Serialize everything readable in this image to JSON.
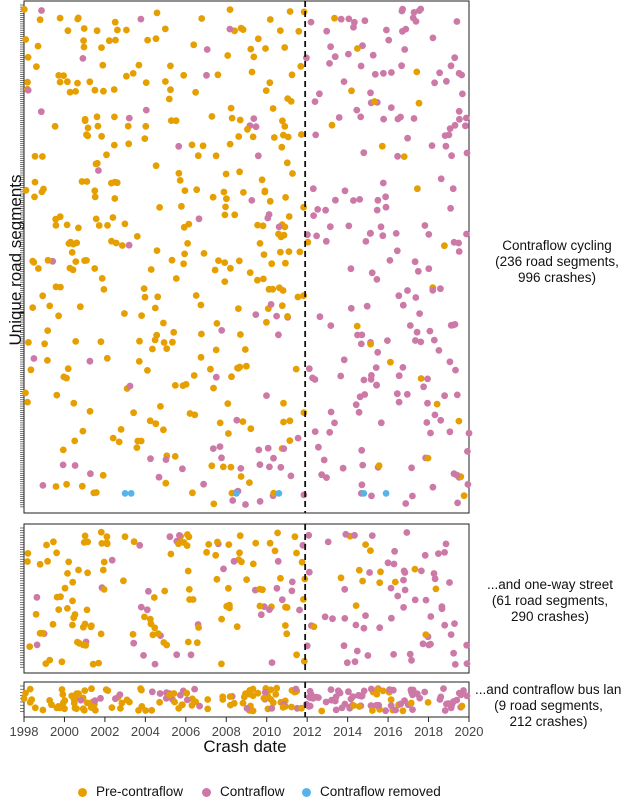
{
  "chart_data": {
    "type": "scatter",
    "xlabel": "Crash date",
    "ylabel": "Unique road segments",
    "xlim": [
      1998,
      2020
    ],
    "xticks": [
      "1998",
      "2000",
      "2002",
      "2004",
      "2006",
      "2008",
      "2010",
      "2012",
      "2014",
      "2016",
      "2018",
      "2020"
    ],
    "intervention_line_year": 2011.9,
    "colors": {
      "pre_contraflow": "#E69F00",
      "contraflow": "#CC79A7",
      "contraflow_removed": "#56B4E9"
    },
    "legend": [
      {
        "key": "pre_contraflow",
        "label": "Pre-contraflow"
      },
      {
        "key": "contraflow",
        "label": "Contraflow"
      },
      {
        "key": "contraflow_removed",
        "label": "Contraflow removed"
      }
    ],
    "panels": [
      {
        "id": "contraflow-cycling",
        "label_lines": [
          "Contraflow cycling",
          "(236 road segments,",
          "996 crashes)"
        ],
        "segments": 236,
        "crashes": 996,
        "removed_points": [
          [
            2003.0,
            7
          ],
          [
            2003.3,
            7
          ],
          [
            2008.5,
            7
          ],
          [
            2010.6,
            7
          ],
          [
            2014.8,
            7
          ],
          [
            2015.9,
            7
          ]
        ]
      },
      {
        "id": "one-way-street",
        "label_lines": [
          "...and one-way street",
          "(61 road segments,",
          "290 crashes)"
        ],
        "segments": 61,
        "crashes": 290,
        "removed_points": []
      },
      {
        "id": "contraflow-bus-lane",
        "label_lines": [
          "...and contraflow bus lane",
          "(9 road segments,",
          "212 crashes)"
        ],
        "segments": 9,
        "crashes": 212,
        "removed_points": []
      }
    ]
  }
}
